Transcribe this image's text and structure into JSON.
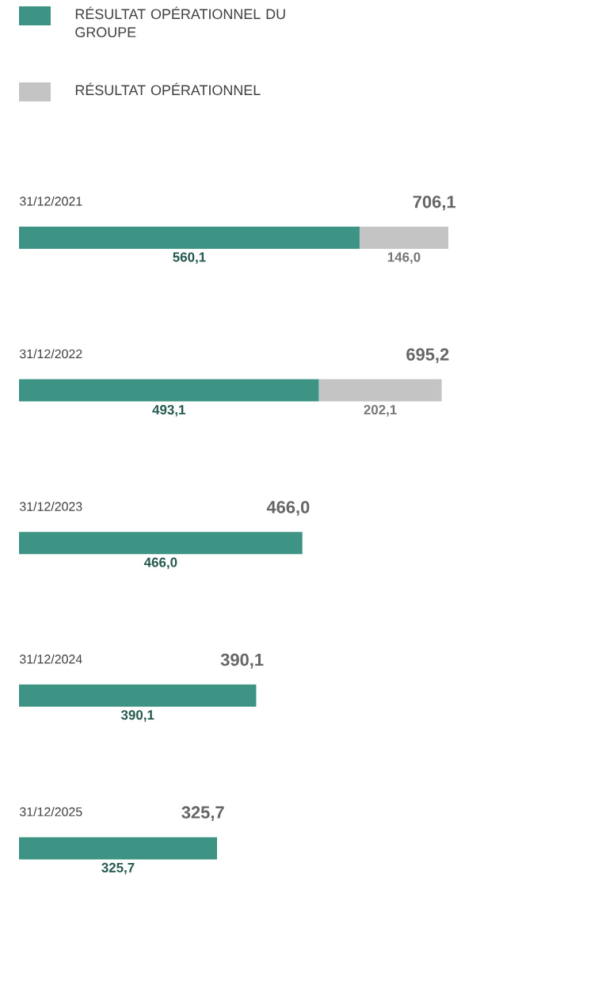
{
  "chart_data": {
    "type": "bar",
    "orientation": "horizontal",
    "stacked": true,
    "legend": "top left",
    "categories": [
      "31/12/2021",
      "31/12/2022",
      "31/12/2023",
      "31/12/2024",
      "31/12/2025"
    ],
    "series": [
      {
        "name": "RÉSULTAT OPÉRATIONNEL DU GROUPE",
        "color": "#3d9484",
        "values": [
          560.1,
          493.1,
          466.0,
          390.1,
          325.7
        ],
        "value_labels": [
          "560,1",
          "493,1",
          "466,0",
          "390,1",
          "325,7"
        ]
      },
      {
        "name": "RÉSULTAT OPÉRATIONNEL",
        "color": "#c4c4c4",
        "values": [
          146.0,
          202.1,
          null,
          null,
          null
        ],
        "value_labels": [
          "146,0",
          "202,1",
          null,
          null,
          null
        ]
      }
    ],
    "totals": [
      "706,1",
      "695,2",
      "466,0",
      "390,1",
      "325,7"
    ]
  }
}
